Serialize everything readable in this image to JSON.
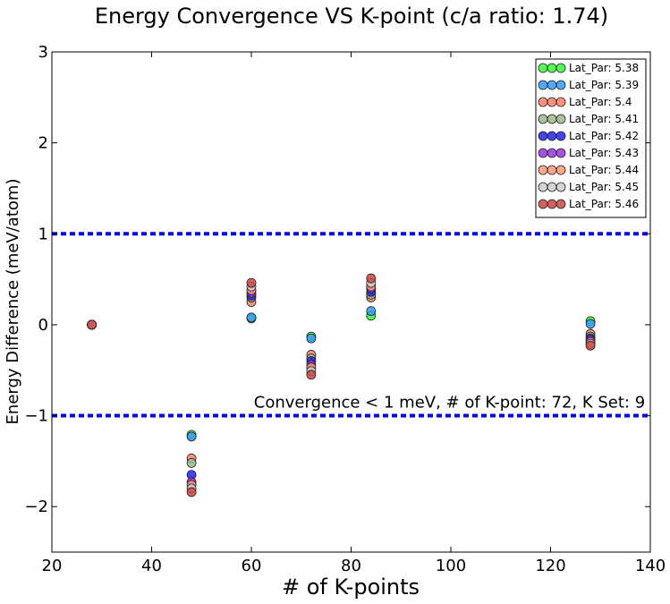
{
  "chart_data": {
    "type": "scatter",
    "title": "Energy Convergence VS K-point (c/a ratio: 1.74)",
    "xlabel": "# of K-points",
    "ylabel": "Energy Difference (meV/atom)",
    "xlim": [
      20,
      140
    ],
    "ylim": [
      -2.5,
      3
    ],
    "xticks": [
      20,
      40,
      60,
      80,
      100,
      120,
      140
    ],
    "yticks": [
      -2,
      -1,
      0,
      1,
      2,
      3
    ],
    "xtick_labels": [
      "20",
      "40",
      "60",
      "80",
      "100",
      "120",
      "140"
    ],
    "ytick_labels": [
      "−2",
      "−1",
      "0",
      "1",
      "2",
      "3"
    ],
    "grid": false,
    "legend_position": "top-right",
    "threshold_lines": [
      1,
      -1
    ],
    "threshold_color": "#0000ff",
    "annotation": {
      "text": "Convergence < 1 meV, # of K-point: 72, K Set: 9",
      "x": 60.5,
      "y": -0.85
    },
    "x": [
      28,
      48,
      60,
      72,
      84,
      128
    ],
    "series": [
      {
        "name": "Lat_Par: 5.38",
        "color": "#33ff33",
        "values": [
          0,
          -1.21,
          0.07,
          -0.13,
          0.1,
          0.04
        ]
      },
      {
        "name": "Lat_Par: 5.39",
        "color": "#3399ff",
        "values": [
          0,
          -1.23,
          0.08,
          -0.15,
          0.15,
          0.01
        ]
      },
      {
        "name": "Lat_Par: 5.4",
        "color": "#ff7f66",
        "values": [
          0,
          -1.47,
          0.25,
          -0.33,
          0.3,
          -0.1
        ]
      },
      {
        "name": "Lat_Par: 5.41",
        "color": "#99bb88",
        "values": [
          0,
          -1.52,
          0.3,
          -0.37,
          0.33,
          -0.13
        ]
      },
      {
        "name": "Lat_Par: 5.42",
        "color": "#2222ee",
        "values": [
          0,
          -1.65,
          0.32,
          -0.4,
          0.36,
          -0.15
        ]
      },
      {
        "name": "Lat_Par: 5.43",
        "color": "#9933dd",
        "values": [
          0,
          -1.73,
          0.35,
          -0.44,
          0.4,
          -0.17
        ]
      },
      {
        "name": "Lat_Par: 5.44",
        "color": "#ff9977",
        "values": [
          0,
          -1.76,
          0.38,
          -0.47,
          0.42,
          -0.19
        ]
      },
      {
        "name": "Lat_Par: 5.45",
        "color": "#cccccc",
        "values": [
          0,
          -1.8,
          0.42,
          -0.51,
          0.46,
          -0.21
        ]
      },
      {
        "name": "Lat_Par: 5.46",
        "color": "#cc4444",
        "values": [
          0,
          -1.84,
          0.46,
          -0.55,
          0.51,
          -0.23
        ]
      }
    ]
  }
}
